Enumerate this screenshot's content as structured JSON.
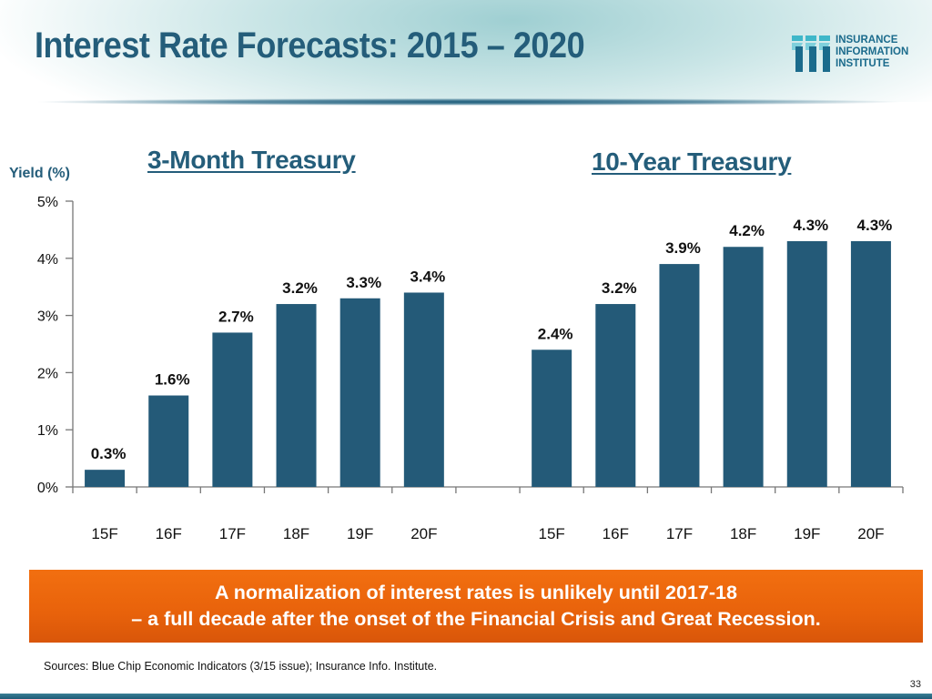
{
  "header": {
    "title": "Interest Rate Forecasts: 2015 – 2020",
    "logo": {
      "icon": "iii-logo-icon",
      "lines": [
        "INSURANCE",
        "INFORMATION",
        "INSTITUTE"
      ]
    }
  },
  "colors": {
    "bar": "#245a78",
    "title": "#245d7a",
    "callout": "#ee6a0e",
    "axis": "#777777"
  },
  "chart_data": {
    "type": "bar",
    "ylabel": "Yield (%)",
    "ylim": [
      0,
      5
    ],
    "yticks": [
      "0%",
      "1%",
      "2%",
      "3%",
      "4%",
      "5%"
    ],
    "grid": false,
    "panels": [
      {
        "title": "3-Month Treasury",
        "categories": [
          "15F",
          "16F",
          "17F",
          "18F",
          "19F",
          "20F"
        ],
        "values": [
          0.3,
          1.6,
          2.7,
          3.2,
          3.3,
          3.4
        ],
        "labels": [
          "0.3%",
          "1.6%",
          "2.7%",
          "3.2%",
          "3.3%",
          "3.4%"
        ]
      },
      {
        "title": "10-Year Treasury",
        "categories": [
          "15F",
          "16F",
          "17F",
          "18F",
          "19F",
          "20F"
        ],
        "values": [
          2.4,
          3.2,
          3.9,
          4.2,
          4.3,
          4.3
        ],
        "labels": [
          "2.4%",
          "3.2%",
          "3.9%",
          "4.2%",
          "4.3%",
          "4.3%"
        ]
      }
    ]
  },
  "callout": {
    "line1": "A normalization of interest rates is unlikely until 2017-18",
    "line2": "– a full decade after the onset of the Financial Crisis and Great Recession."
  },
  "sources": "Sources: Blue Chip Economic Indicators (3/15 issue); Insurance Info. Institute.",
  "page_number": "33"
}
